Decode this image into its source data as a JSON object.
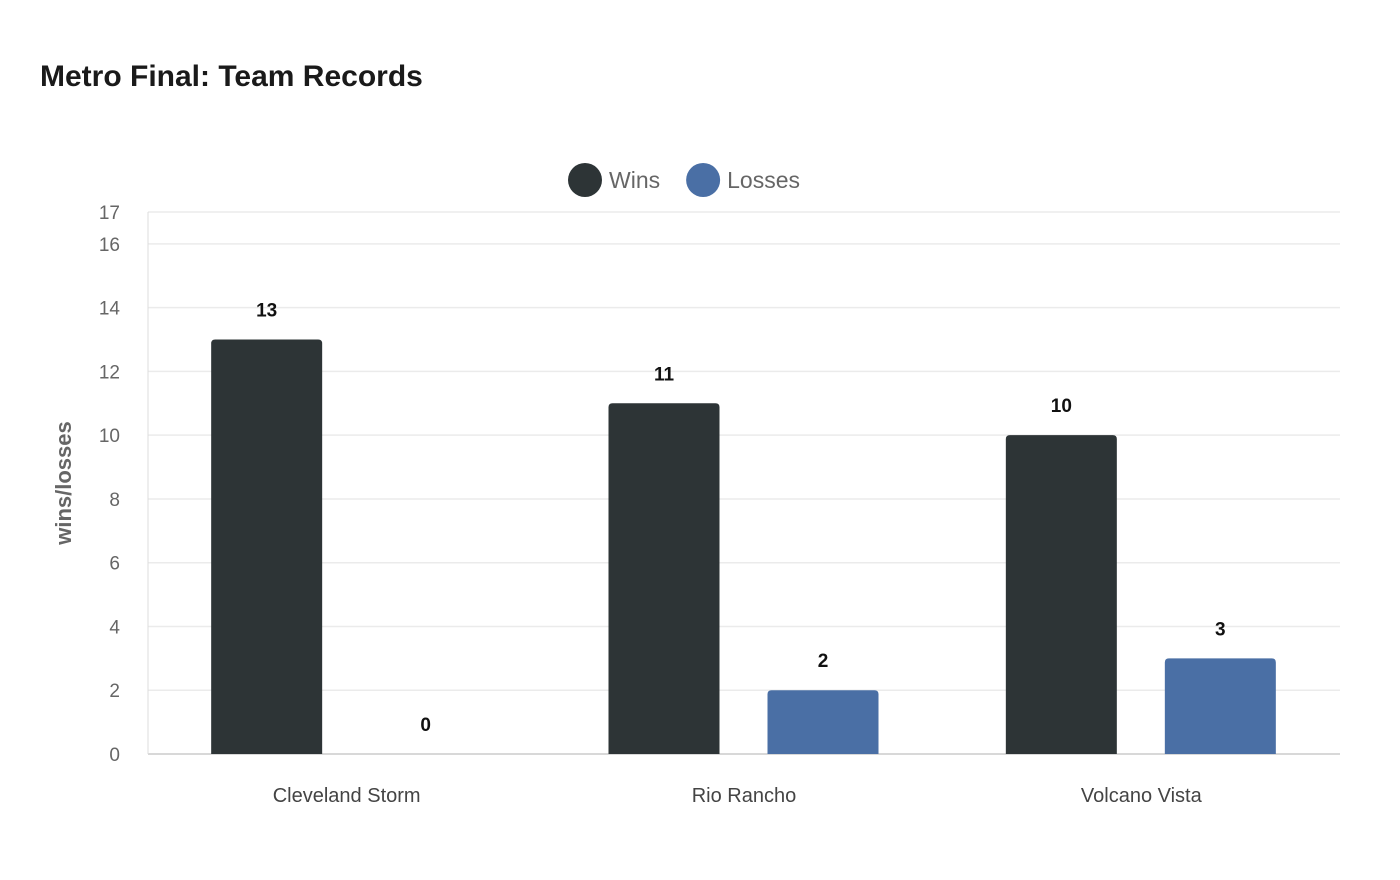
{
  "chart_data": {
    "type": "bar",
    "title": "Metro Final: Team Records",
    "ylabel": "wins/losses",
    "xlabel": "",
    "categories": [
      "Cleveland Storm",
      "Rio Rancho",
      "Volcano Vista"
    ],
    "series": [
      {
        "name": "Wins",
        "values": [
          13,
          11,
          10
        ],
        "color": "#2d3436"
      },
      {
        "name": "Losses",
        "values": [
          0,
          2,
          3
        ],
        "color": "#4a6fa5"
      }
    ],
    "ylim": [
      0,
      17
    ],
    "yticks": [
      0,
      2,
      4,
      6,
      8,
      10,
      12,
      14,
      16,
      17
    ],
    "grid": true,
    "legend": "top-center",
    "data_labels": true
  }
}
